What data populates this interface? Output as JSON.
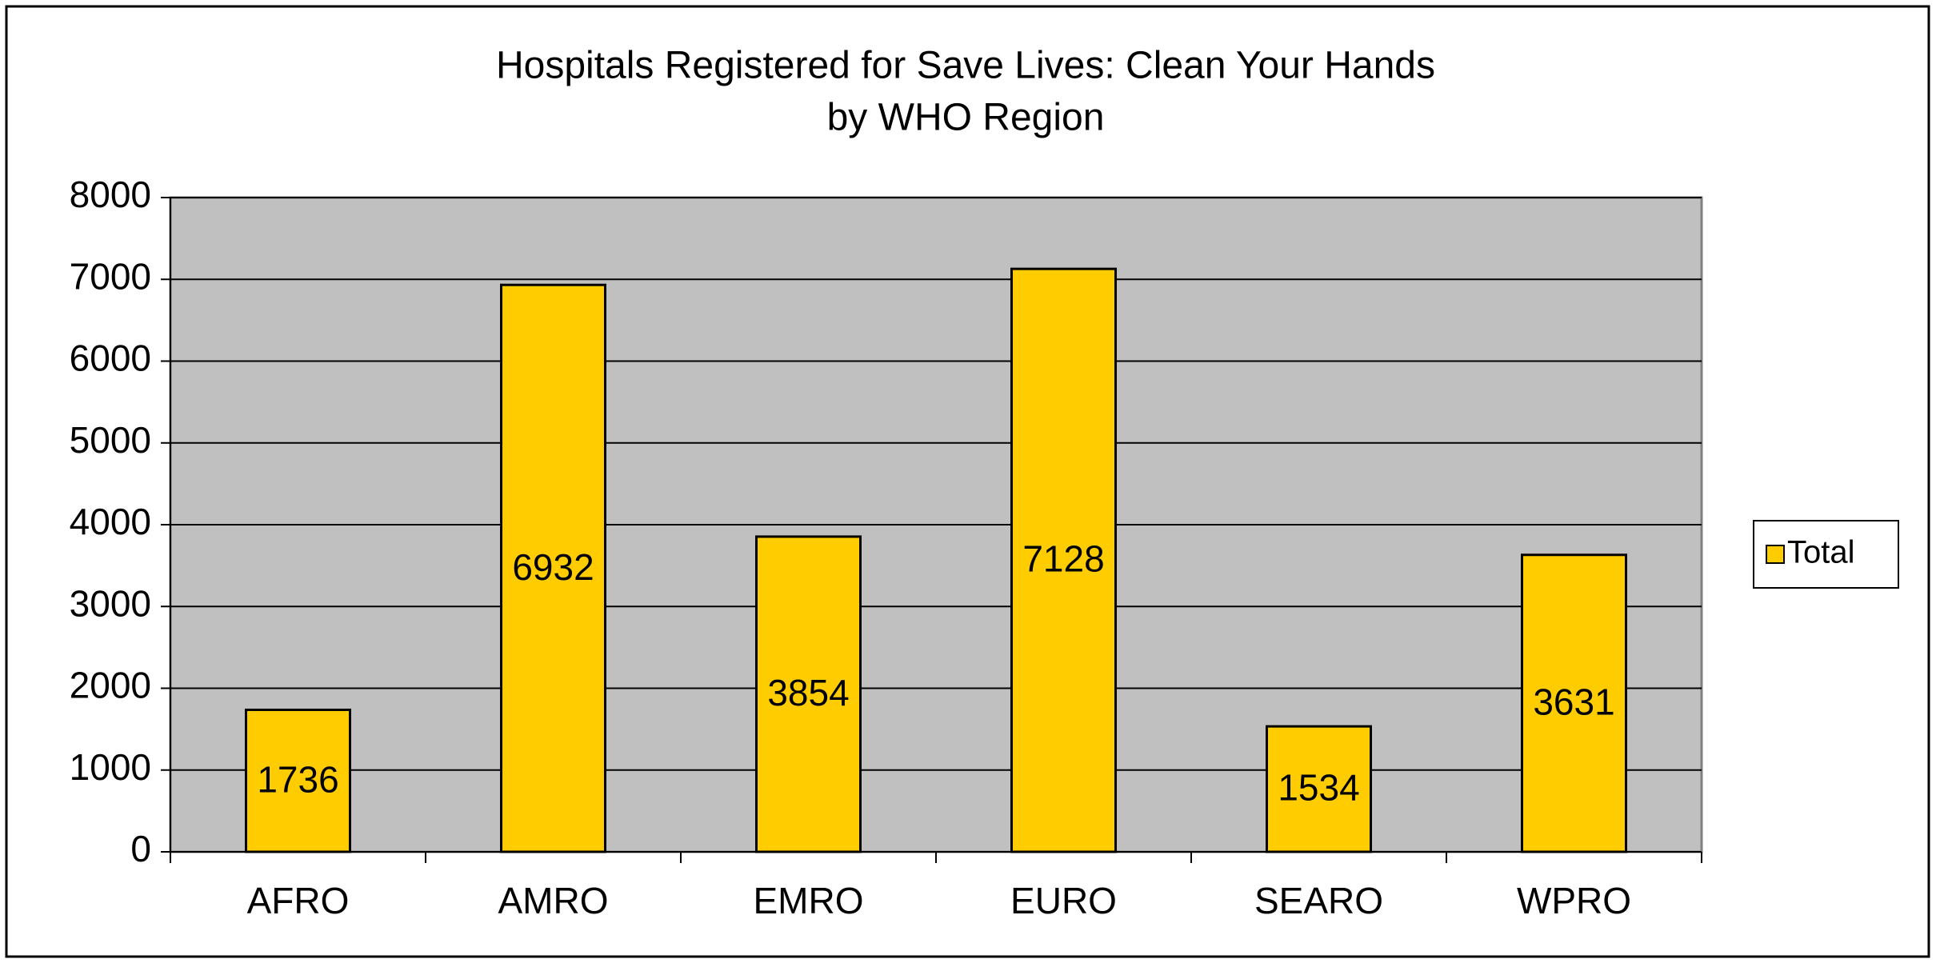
{
  "chart_data": {
    "type": "bar",
    "title": [
      "Hospitals Registered for Save Lives: Clean Your Hands",
      "by WHO Region"
    ],
    "categories": [
      "AFRO",
      "AMRO",
      "EMRO",
      "EURO",
      "SEARO",
      "WPRO"
    ],
    "series": [
      {
        "name": "Total",
        "color": "#ffcc00",
        "values": [
          1736,
          6932,
          3854,
          7128,
          1534,
          3631
        ]
      }
    ],
    "ylim": [
      0,
      8000
    ],
    "yticks": [
      0,
      1000,
      2000,
      3000,
      4000,
      5000,
      6000,
      7000,
      8000
    ],
    "grid": true,
    "legend": "right",
    "plot_background": "#c0c0c0"
  }
}
